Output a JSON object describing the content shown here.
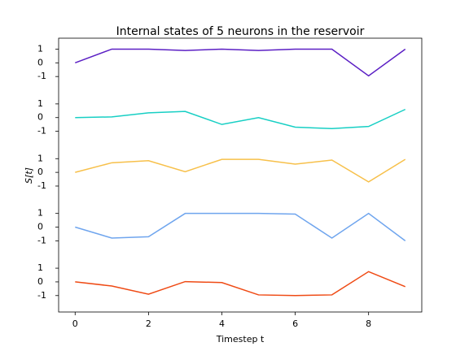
{
  "chart_data": {
    "type": "line",
    "title": "Internal states of 5 neurons in the reservoir",
    "xlabel": "Timestep t",
    "ylabel": "S[t]",
    "x": [
      0,
      1,
      2,
      3,
      4,
      5,
      6,
      7,
      8,
      9
    ],
    "xlim": [
      -0.45,
      9.45
    ],
    "xticks": [
      0,
      2,
      4,
      6,
      8
    ],
    "series": [
      {
        "color": "#5b1fc4",
        "ylim": [
          -2.2,
          1.8
        ],
        "yticks": [
          -1,
          0,
          1
        ],
        "values": [
          0,
          1,
          1,
          0.9,
          1,
          0.9,
          1,
          1,
          -0.95,
          1
        ]
      },
      {
        "color": "#17cfc4",
        "ylim": [
          -2.2,
          1.8
        ],
        "yticks": [
          -1,
          0,
          1
        ],
        "values": [
          0,
          0.05,
          0.35,
          0.45,
          -0.5,
          0,
          -0.7,
          -0.8,
          -0.65,
          0.6
        ]
      },
      {
        "color": "#f7c04a",
        "ylim": [
          -2.2,
          1.8
        ],
        "yticks": [
          -1,
          0,
          1
        ],
        "values": [
          0,
          0.7,
          0.85,
          0.05,
          0.95,
          0.95,
          0.6,
          0.9,
          -0.7,
          0.95
        ]
      },
      {
        "color": "#6fa5ee",
        "ylim": [
          -2.2,
          1.8
        ],
        "yticks": [
          -1,
          0,
          1
        ],
        "values": [
          0,
          -0.8,
          -0.7,
          1,
          1,
          1,
          0.95,
          -0.8,
          1,
          -1
        ]
      },
      {
        "color": "#ef4a14",
        "ylim": [
          -2.2,
          1.8
        ],
        "yticks": [
          -1,
          0,
          1
        ],
        "values": [
          0,
          -0.3,
          -0.9,
          0.02,
          -0.05,
          -0.95,
          -1,
          -0.95,
          0.75,
          -0.35
        ]
      }
    ]
  }
}
